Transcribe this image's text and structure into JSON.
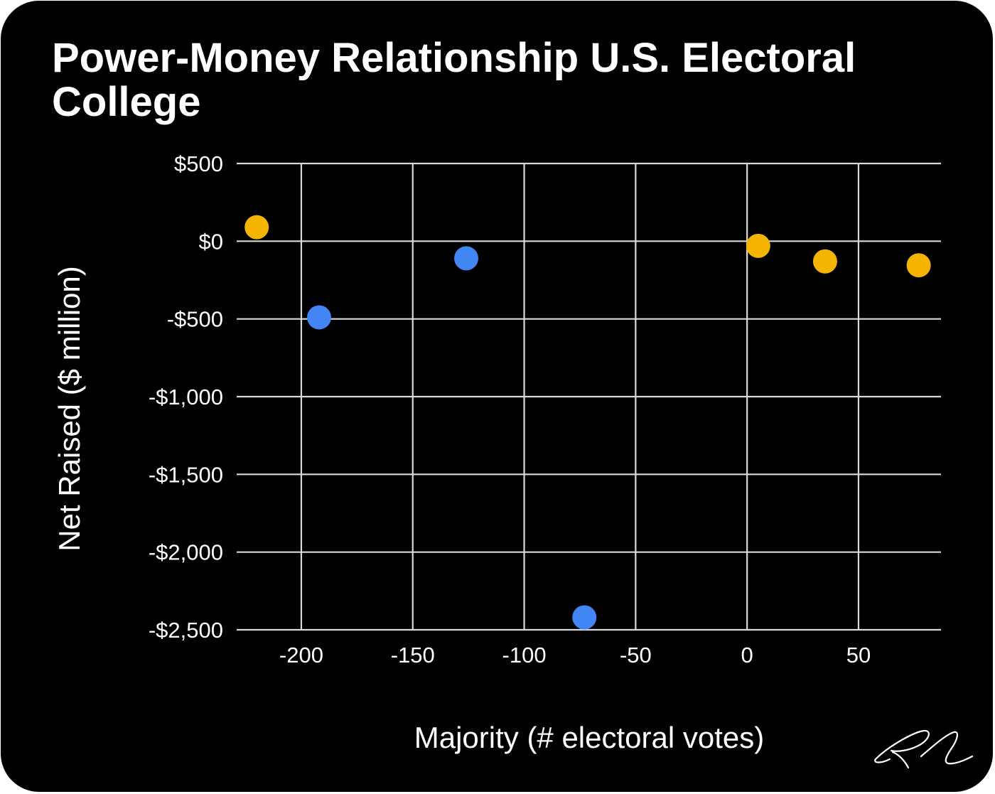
{
  "chart_data": {
    "type": "scatter",
    "title": "Power-Money Relationship U.S. Electoral College",
    "xlabel": "Majority (# electoral votes)",
    "ylabel": "Net Raised ($ million)",
    "xlim": [
      -229,
      87
    ],
    "ylim": [
      -2500,
      500
    ],
    "x_ticks": [
      -200,
      -150,
      -100,
      -50,
      0,
      50
    ],
    "x_tick_labels": [
      "-200",
      "-150",
      "-100",
      "-50",
      "0",
      "50"
    ],
    "y_ticks": [
      500,
      0,
      -500,
      -1000,
      -1500,
      -2000,
      -2500
    ],
    "y_tick_labels": [
      "$500",
      "$0",
      "-$500",
      "-$1,000",
      "-$1,500",
      "-$2,000",
      "-$2,500"
    ],
    "grid": true,
    "legend": "none",
    "colors": {
      "background": "#000000",
      "grid": "#d9d9d9",
      "blue": "#4285f4",
      "gold": "#f4b400",
      "text": "#ffffff"
    },
    "series": [
      {
        "color": "#4285f4",
        "points": [
          {
            "x": -192,
            "y": -490
          },
          {
            "x": -126,
            "y": -110
          },
          {
            "x": -73,
            "y": -2420
          }
        ]
      },
      {
        "color": "#f4b400",
        "points": [
          {
            "x": -220,
            "y": 90
          },
          {
            "x": 5,
            "y": -30
          },
          {
            "x": 35,
            "y": -130
          },
          {
            "x": 77,
            "y": -155
          }
        ]
      }
    ]
  },
  "signature": "RL"
}
